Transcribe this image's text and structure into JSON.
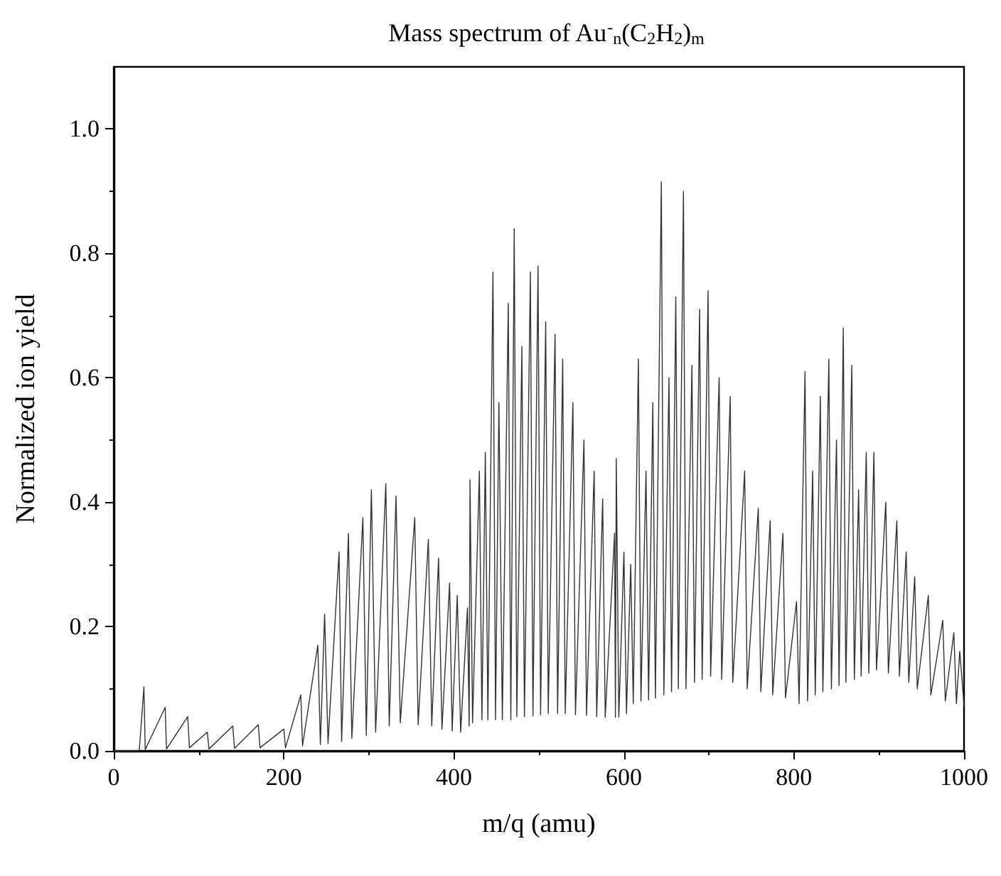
{
  "chart_data": {
    "type": "line",
    "title": "Mass spectrum of Au$^{-}$$_{n}$(C$_{2}$H$_{2}$)$_{m}$",
    "xlabel": "m/q (amu)",
    "ylabel": "Normalized ion yield",
    "x": [
      0,
      30,
      35.5,
      37,
      60.5,
      62,
      87,
      89,
      110,
      112,
      140,
      142,
      170,
      172,
      200,
      202,
      220,
      222,
      240,
      243,
      248,
      252,
      265,
      268,
      276,
      280,
      293,
      297,
      303,
      308,
      320,
      324,
      332,
      337,
      354,
      358,
      370,
      374,
      382,
      386,
      395,
      398,
      404,
      408,
      416,
      418,
      419,
      422,
      430,
      433,
      437,
      440,
      446,
      449,
      453,
      457,
      464,
      467,
      471,
      474,
      480,
      483,
      490,
      493,
      499,
      502,
      508,
      511,
      519,
      522,
      528,
      531,
      540,
      543,
      553,
      556,
      565,
      568,
      575,
      578,
      589,
      590,
      591,
      594,
      600,
      603,
      608,
      611,
      617,
      620,
      626,
      629,
      634,
      637,
      644,
      647,
      653,
      656,
      661,
      664,
      670,
      673,
      680,
      683,
      689,
      692,
      699,
      702,
      712,
      715,
      725,
      728,
      742,
      745,
      758,
      761,
      772,
      775,
      787,
      790,
      803,
      806,
      813,
      816,
      822,
      825,
      831,
      834,
      841,
      844,
      850,
      853,
      858,
      861,
      868,
      871,
      876,
      879,
      885,
      888,
      894,
      897,
      908,
      911,
      921,
      924,
      932,
      935,
      942,
      945,
      958,
      961,
      975,
      978,
      988,
      991,
      995,
      1000
    ],
    "series": [
      {
        "color": "#333333",
        "values": [
          0,
          0,
          0.103,
          0.002,
          0.07,
          0.003,
          0.055,
          0.005,
          0.03,
          0.003,
          0.04,
          0.004,
          0.042,
          0.005,
          0.035,
          0.005,
          0.09,
          0.008,
          0.17,
          0.01,
          0.22,
          0.012,
          0.32,
          0.015,
          0.35,
          0.02,
          0.375,
          0.025,
          0.42,
          0.03,
          0.43,
          0.04,
          0.41,
          0.045,
          0.375,
          0.042,
          0.34,
          0.04,
          0.31,
          0.035,
          0.27,
          0.032,
          0.25,
          0.03,
          0.23,
          0.04,
          0.436,
          0.045,
          0.45,
          0.05,
          0.48,
          0.05,
          0.77,
          0.05,
          0.56,
          0.05,
          0.72,
          0.05,
          0.84,
          0.055,
          0.65,
          0.055,
          0.77,
          0.056,
          0.78,
          0.058,
          0.69,
          0.06,
          0.67,
          0.06,
          0.63,
          0.06,
          0.56,
          0.058,
          0.5,
          0.057,
          0.45,
          0.055,
          0.405,
          0.054,
          0.35,
          0.054,
          0.47,
          0.054,
          0.32,
          0.06,
          0.3,
          0.076,
          0.63,
          0.08,
          0.45,
          0.082,
          0.56,
          0.085,
          0.915,
          0.09,
          0.6,
          0.095,
          0.73,
          0.1,
          0.9,
          0.1,
          0.62,
          0.11,
          0.71,
          0.115,
          0.74,
          0.12,
          0.6,
          0.115,
          0.57,
          0.11,
          0.45,
          0.1,
          0.39,
          0.095,
          0.37,
          0.09,
          0.35,
          0.085,
          0.24,
          0.076,
          0.61,
          0.08,
          0.45,
          0.09,
          0.57,
          0.095,
          0.63,
          0.1,
          0.5,
          0.105,
          0.68,
          0.11,
          0.62,
          0.115,
          0.42,
          0.12,
          0.48,
          0.125,
          0.48,
          0.13,
          0.4,
          0.125,
          0.37,
          0.12,
          0.32,
          0.11,
          0.28,
          0.1,
          0.25,
          0.09,
          0.21,
          0.08,
          0.19,
          0.076,
          0.16,
          0.073
        ]
      }
    ],
    "xlim": [
      0,
      1000
    ],
    "xticks": [
      0,
      200,
      400,
      600,
      800,
      1000
    ],
    "ylim": [
      0,
      1.1
    ],
    "yticks": [
      {
        "value": 0,
        "label": "0.0"
      },
      {
        "value": 0.2,
        "label": "0.2"
      },
      {
        "value": 0.4,
        "label": "0.4"
      },
      {
        "value": 0.6,
        "label": "0.6"
      },
      {
        "value": 0.8,
        "label": "0.8"
      },
      {
        "value": 1.0,
        "label": "1.0"
      }
    ],
    "marker": "none",
    "line_style": "solid",
    "grid": false
  }
}
